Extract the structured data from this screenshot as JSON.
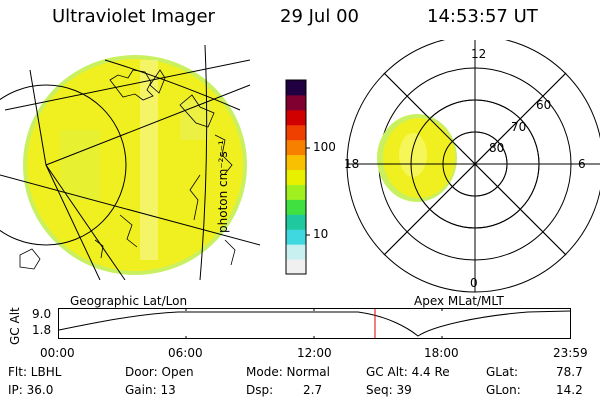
{
  "header": {
    "instrument": "Ultraviolet Imager",
    "date": "29 Jul 00",
    "time": "14:53:57 UT"
  },
  "colorbar": {
    "label": "photon cm⁻²s⁻¹",
    "tick_high": "100",
    "tick_low": "10",
    "colors": [
      "#f0f0f0",
      "#c8f0f0",
      "#40d8e0",
      "#20c8a0",
      "#40e040",
      "#a0f020",
      "#e8f000",
      "#f8c000",
      "#f88000",
      "#f04000",
      "#d00000",
      "#800030",
      "#200040"
    ]
  },
  "polar_plot": {
    "label_top": "12",
    "label_bottom": "0",
    "label_left": "18",
    "label_right": "6",
    "ring_60": "60",
    "ring_70": "70",
    "ring_80": "80"
  },
  "timeline": {
    "left_title": "Geographic Lat/Lon",
    "right_title": "Apex MLat/MLT",
    "axis_label": "GC Alt",
    "y_top": "9.0",
    "y_bottom": "1.8",
    "ticks": [
      "00:00",
      "06:00",
      "12:00",
      "18:00",
      "23:59"
    ]
  },
  "info": {
    "flt": "Flt: LBHL",
    "ip": "IP: 36.0",
    "door": "Door: Open",
    "gain": "Gain: 13",
    "mode": "Mode: Normal",
    "dsp_label": "Dsp:",
    "dsp_value": "2.7",
    "gc_alt": "GC Alt: 4.4 Re",
    "seq": "Seq: 39",
    "glat_label": "GLat:",
    "glat_value": "78.7",
    "glon_label": "GLon:",
    "glon_value": "14.2"
  }
}
